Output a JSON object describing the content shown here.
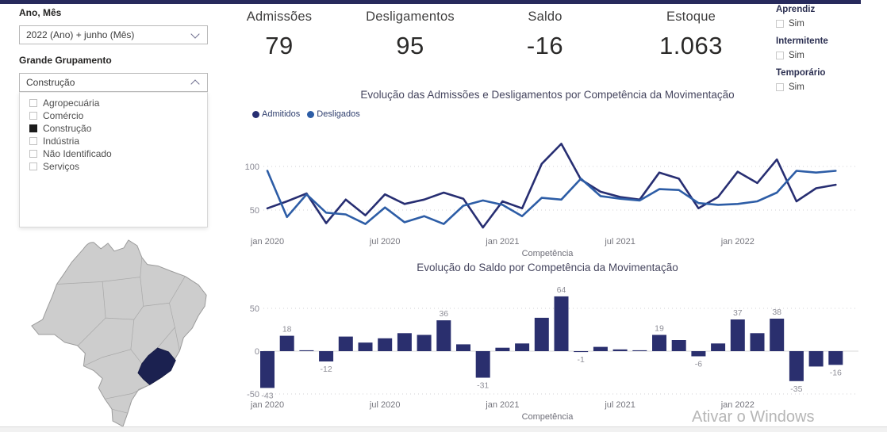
{
  "accent": {
    "topbar_color": "#272a5c"
  },
  "filters": {
    "ano_mes": {
      "label": "Ano, Mês",
      "value": "2022 (Ano) + junho (Mês)"
    },
    "grande_grupamento": {
      "label": "Grande Grupamento",
      "value": "Construção",
      "options": [
        {
          "label": "Agropecuária",
          "checked": false
        },
        {
          "label": "Comércio",
          "checked": false
        },
        {
          "label": "Construção",
          "checked": true
        },
        {
          "label": "Indústria",
          "checked": false
        },
        {
          "label": "Não Identificado",
          "checked": false
        },
        {
          "label": "Serviços",
          "checked": false
        }
      ]
    },
    "toggles": [
      {
        "label": "Aprendiz",
        "option": "Sim",
        "checked": false
      },
      {
        "label": "Intermitente",
        "option": "Sim",
        "checked": false
      },
      {
        "label": "Temporário",
        "option": "Sim",
        "checked": false
      }
    ]
  },
  "kpis": [
    {
      "label": "Admissões",
      "value": "79"
    },
    {
      "label": "Desligamentos",
      "value": "95"
    },
    {
      "label": "Saldo",
      "value": "-16"
    },
    {
      "label": "Estoque",
      "value": "1.063"
    }
  ],
  "map": {
    "highlighted_region": "Minas Gerais",
    "base_color": "#cdcdcd",
    "border_color": "#9b9b9b",
    "highlight_color": "#1b2150"
  },
  "chart_data": [
    {
      "type": "line",
      "title": "Evolução das Admissões e Desligamentos por Competência da Movimentação",
      "xlabel": "Competência",
      "categories": [
        "jan 2020",
        "fev 2020",
        "mar 2020",
        "abr 2020",
        "mai 2020",
        "jun 2020",
        "jul 2020",
        "ago 2020",
        "set 2020",
        "out 2020",
        "nov 2020",
        "dez 2020",
        "jan 2021",
        "fev 2021",
        "mar 2021",
        "abr 2021",
        "mai 2021",
        "jun 2021",
        "jul 2021",
        "ago 2021",
        "set 2021",
        "out 2021",
        "nov 2021",
        "dez 2021",
        "jan 2022",
        "fev 2022",
        "mar 2022",
        "abr 2022",
        "mai 2022",
        "jun 2022"
      ],
      "x_tick_labels": [
        "jan 2020",
        "jul 2020",
        "jan 2021",
        "jul 2021",
        "jan 2022"
      ],
      "x_tick_indices": [
        0,
        6,
        12,
        18,
        24
      ],
      "yticks": [
        50,
        100
      ],
      "ylim": [
        20,
        135
      ],
      "grid": "dotted",
      "legend_position": "top-left",
      "series": [
        {
          "name": "Admitidos",
          "color": "#272e72",
          "values": [
            52,
            60,
            69,
            35,
            62,
            44,
            68,
            57,
            62,
            70,
            63,
            30,
            60,
            52,
            103,
            126,
            85,
            71,
            65,
            62,
            93,
            86,
            52,
            65,
            94,
            81,
            108,
            60,
            75,
            79
          ]
        },
        {
          "name": "Desligados",
          "color": "#2d5da6",
          "values": [
            95,
            42,
            68,
            47,
            45,
            34,
            53,
            36,
            43,
            34,
            55,
            61,
            56,
            43,
            64,
            62,
            86,
            66,
            63,
            61,
            74,
            73,
            58,
            56,
            57,
            60,
            70,
            95,
            93,
            95
          ]
        }
      ]
    },
    {
      "type": "bar",
      "title": "Evolução do Saldo por Competência da Movimentação",
      "xlabel": "Competência",
      "categories": [
        "jan 2020",
        "fev 2020",
        "mar 2020",
        "abr 2020",
        "mai 2020",
        "jun 2020",
        "jul 2020",
        "ago 2020",
        "set 2020",
        "out 2020",
        "nov 2020",
        "dez 2020",
        "jan 2021",
        "fev 2021",
        "mar 2021",
        "abr 2021",
        "mai 2021",
        "jun 2021",
        "jul 2021",
        "ago 2021",
        "set 2021",
        "out 2021",
        "nov 2021",
        "dez 2021",
        "jan 2022",
        "fev 2022",
        "mar 2022",
        "abr 2022",
        "mai 2022",
        "jun 2022"
      ],
      "x_tick_labels": [
        "jan 2020",
        "jul 2020",
        "jan 2021",
        "jul 2021",
        "jan 2022"
      ],
      "x_tick_indices": [
        0,
        6,
        12,
        18,
        24
      ],
      "yticks": [
        -50,
        0,
        50
      ],
      "ylim": [
        -50,
        70
      ],
      "grid": "dotted",
      "bar_color": "#2a2f6e",
      "values": [
        -43,
        18,
        1,
        -12,
        17,
        10,
        15,
        21,
        19,
        36,
        8,
        -31,
        4,
        9,
        39,
        64,
        -1,
        5,
        2,
        1,
        19,
        13,
        -6,
        9,
        37,
        21,
        38,
        -35,
        -18,
        -16
      ],
      "data_labels": {
        "0": "-43",
        "1": "18",
        "3": "-12",
        "9": "36",
        "11": "-31",
        "15": "64",
        "16": "-1",
        "20": "19",
        "22": "-6",
        "24": "37",
        "26": "38",
        "27": "-35",
        "29": "-16"
      }
    }
  ],
  "watermark": "Ativar o Windows"
}
